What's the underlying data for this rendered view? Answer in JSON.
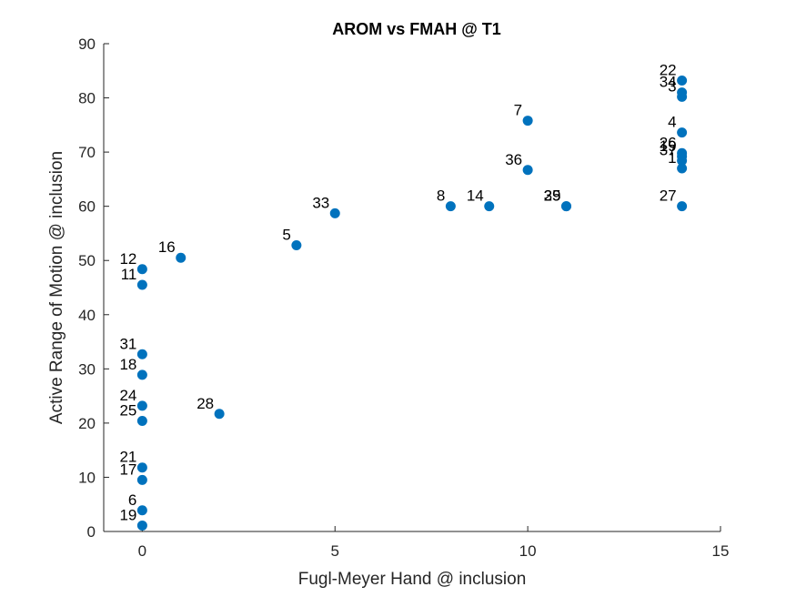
{
  "chart_data": {
    "type": "scatter",
    "title": "AROM vs FMAH @ T1",
    "xlabel": "Fugl-Meyer Hand @ inclusion",
    "ylabel": "Active Range of Motion @ inclusion",
    "xlim": [
      -1,
      15
    ],
    "ylim": [
      0,
      90
    ],
    "xticks": [
      0,
      5,
      10,
      15
    ],
    "yticks": [
      0,
      10,
      20,
      30,
      40,
      50,
      60,
      70,
      80,
      90
    ],
    "grid": false,
    "marker_color": "#0072BD",
    "points": [
      {
        "label": "22",
        "x": 14,
        "y": 83.2
      },
      {
        "label": "34",
        "x": 14,
        "y": 81.0
      },
      {
        "label": "3",
        "x": 14,
        "y": 80.2
      },
      {
        "label": "7",
        "x": 10,
        "y": 75.8
      },
      {
        "label": "4",
        "x": 14,
        "y": 73.6
      },
      {
        "label": "26",
        "x": 14,
        "y": 69.8
      },
      {
        "label": "19",
        "x": 14,
        "y": 69.2
      },
      {
        "label": "37",
        "x": 14,
        "y": 68.4
      },
      {
        "label": "1",
        "x": 14,
        "y": 67.0
      },
      {
        "label": "36",
        "x": 10,
        "y": 66.7
      },
      {
        "label": "8",
        "x": 8,
        "y": 60.0
      },
      {
        "label": "14",
        "x": 9,
        "y": 60.0
      },
      {
        "label": "29",
        "x": 11,
        "y": 60.0
      },
      {
        "label": "35",
        "x": 11,
        "y": 60.0
      },
      {
        "label": "27",
        "x": 14,
        "y": 60.0
      },
      {
        "label": "33",
        "x": 5,
        "y": 58.7
      },
      {
        "label": "5",
        "x": 4,
        "y": 52.8
      },
      {
        "label": "16",
        "x": 1,
        "y": 50.5
      },
      {
        "label": "12",
        "x": 0,
        "y": 48.4
      },
      {
        "label": "11",
        "x": 0,
        "y": 45.5
      },
      {
        "label": "31",
        "x": 0,
        "y": 32.7
      },
      {
        "label": "18",
        "x": 0,
        "y": 28.9
      },
      {
        "label": "24",
        "x": 0,
        "y": 23.2
      },
      {
        "label": "28",
        "x": 2,
        "y": 21.7
      },
      {
        "label": "25",
        "x": 0,
        "y": 20.4
      },
      {
        "label": "21",
        "x": 0,
        "y": 11.8
      },
      {
        "label": "17",
        "x": 0,
        "y": 9.5
      },
      {
        "label": "6",
        "x": 0,
        "y": 3.9
      },
      {
        "label": "19",
        "x": 0,
        "y": 1.1
      }
    ]
  }
}
